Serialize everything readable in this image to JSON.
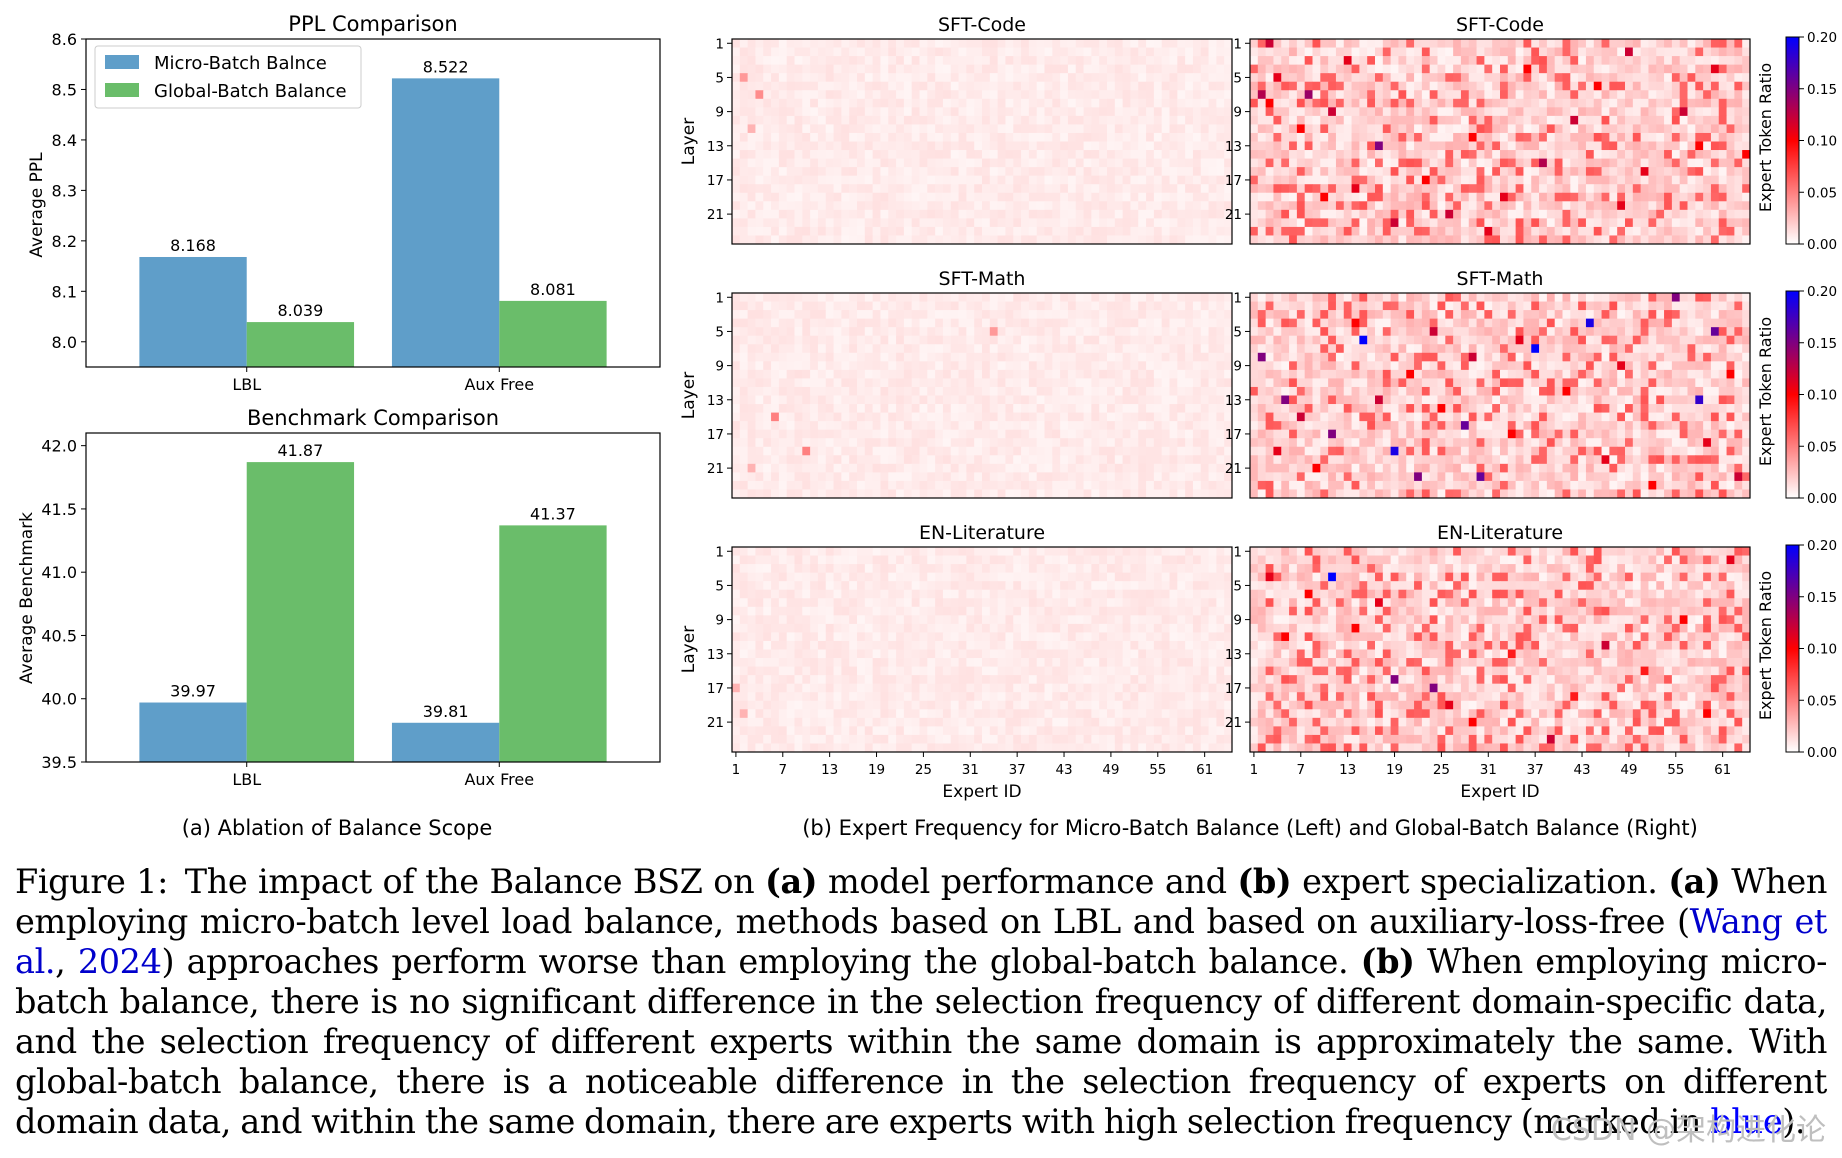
{
  "chart_data": [
    {
      "panel": "a-top",
      "type": "bar",
      "title": "PPL Comparison",
      "ylabel": "Average PPL",
      "xlabel": "",
      "categories": [
        "LBL",
        "Aux Free"
      ],
      "series": [
        {
          "name": "Micro-Batch Balnce",
          "values": [
            8.168,
            8.522
          ],
          "color": "#5f9ec9"
        },
        {
          "name": "Global-Batch Balance",
          "values": [
            8.039,
            8.081
          ],
          "color": "#6abd6a"
        }
      ],
      "value_labels": [
        [
          "8.168",
          "8.522"
        ],
        [
          "8.039",
          "8.081"
        ]
      ],
      "ylim": [
        7.95,
        8.6
      ],
      "yticks": [
        "8.0",
        "8.1",
        "8.2",
        "8.3",
        "8.4",
        "8.5",
        "8.6"
      ],
      "legend": "top-left",
      "grid": false
    },
    {
      "panel": "a-bottom",
      "type": "bar",
      "title": "Benchmark Comparison",
      "ylabel": "Average Benchmark",
      "xlabel": "",
      "categories": [
        "LBL",
        "Aux Free"
      ],
      "series": [
        {
          "values": [
            39.97,
            39.81
          ],
          "color": "#5f9ec9"
        },
        {
          "values": [
            41.87,
            41.37
          ],
          "color": "#6abd6a"
        }
      ],
      "value_labels": [
        [
          "39.97",
          "39.81"
        ],
        [
          "41.87",
          "41.37"
        ]
      ],
      "ylim": [
        39.5,
        42.1
      ],
      "yticks": [
        "39.5",
        "40.0",
        "40.5",
        "41.0",
        "41.5",
        "42.0"
      ],
      "grid": false
    },
    {
      "panel": "b",
      "type": "heatmap",
      "titles": [
        "SFT-Code",
        "SFT-Code",
        "SFT-Math",
        "SFT-Math",
        "EN-Literature",
        "EN-Literature"
      ],
      "ylabel": "Layer",
      "xlabel": "Expert ID",
      "xticks": [
        "1",
        "7",
        "13",
        "19",
        "25",
        "31",
        "37",
        "43",
        "49",
        "55",
        "61"
      ],
      "yticks": [
        "1",
        "5",
        "9",
        "13",
        "17",
        "21"
      ],
      "n_experts": 64,
      "n_layers": 24,
      "colorbar": {
        "label": "Expert Token Ratio",
        "ticks": [
          "0.00",
          "0.05",
          "0.10",
          "0.15",
          "0.20"
        ],
        "range": [
          0,
          0.2
        ]
      },
      "micro_batch_base": 0.008,
      "global_batch_base": 0.02,
      "hot_cells": {
        "code_left": [
          [
            1,
            4,
            0.04
          ],
          [
            3,
            6,
            0.045
          ],
          [
            2,
            10,
            0.03
          ]
        ],
        "code_right": [
          [
            2,
            0,
            0.12
          ],
          [
            7,
            6,
            0.14
          ],
          [
            1,
            6,
            0.13
          ],
          [
            3,
            4,
            0.11
          ],
          [
            2,
            7,
            0.1
          ],
          [
            6,
            10,
            0.1
          ],
          [
            10,
            8,
            0.12
          ],
          [
            13,
            17,
            0.11
          ],
          [
            16,
            12,
            0.15
          ],
          [
            22,
            16,
            0.1
          ],
          [
            25,
            20,
            0.12
          ],
          [
            28,
            11,
            0.1
          ],
          [
            32,
            18,
            0.11
          ],
          [
            37,
            14,
            0.13
          ],
          [
            44,
            5,
            0.1
          ],
          [
            47,
            19,
            0.11
          ],
          [
            55,
            8,
            0.12
          ],
          [
            59,
            3,
            0.11
          ],
          [
            63,
            13,
            0.1
          ],
          [
            30,
            22,
            0.11
          ],
          [
            18,
            21,
            0.12
          ],
          [
            9,
            18,
            0.1
          ],
          [
            41,
            9,
            0.12
          ],
          [
            50,
            15,
            0.11
          ],
          [
            57,
            12,
            0.1
          ],
          [
            12,
            2,
            0.11
          ],
          [
            48,
            1,
            0.12
          ],
          [
            35,
            3,
            0.1
          ]
        ],
        "math_left": [
          [
            5,
            14,
            0.05
          ],
          [
            9,
            18,
            0.05
          ],
          [
            33,
            4,
            0.04
          ],
          [
            2,
            20,
            0.03
          ]
        ],
        "math_right": [
          [
            14,
            5,
            0.2
          ],
          [
            18,
            18,
            0.19
          ],
          [
            43,
            3,
            0.19
          ],
          [
            36,
            6,
            0.2
          ],
          [
            57,
            12,
            0.18
          ],
          [
            27,
            15,
            0.16
          ],
          [
            21,
            21,
            0.15
          ],
          [
            4,
            12,
            0.15
          ],
          [
            1,
            7,
            0.15
          ],
          [
            10,
            16,
            0.15
          ],
          [
            29,
            21,
            0.16
          ],
          [
            54,
            0,
            0.15
          ],
          [
            59,
            4,
            0.16
          ],
          [
            28,
            7,
            0.12
          ],
          [
            47,
            8,
            0.11
          ],
          [
            20,
            9,
            0.1
          ],
          [
            6,
            14,
            0.12
          ],
          [
            33,
            16,
            0.1
          ],
          [
            58,
            17,
            0.11
          ],
          [
            40,
            11,
            0.1
          ],
          [
            13,
            3,
            0.1
          ],
          [
            3,
            18,
            0.11
          ],
          [
            62,
            21,
            0.12
          ],
          [
            8,
            20,
            0.1
          ],
          [
            24,
            13,
            0.1
          ],
          [
            45,
            19,
            0.11
          ],
          [
            51,
            22,
            0.1
          ],
          [
            16,
            12,
            0.12
          ],
          [
            34,
            5,
            0.11
          ],
          [
            61,
            9,
            0.1
          ],
          [
            23,
            4,
            0.12
          ]
        ],
        "lit_left": [
          [
            0,
            16,
            0.03
          ],
          [
            1,
            19,
            0.03
          ]
        ],
        "lit_right": [
          [
            10,
            3,
            0.2
          ],
          [
            18,
            15,
            0.15
          ],
          [
            23,
            16,
            0.15
          ],
          [
            2,
            3,
            0.11
          ],
          [
            7,
            5,
            0.1
          ],
          [
            16,
            6,
            0.11
          ],
          [
            45,
            11,
            0.12
          ],
          [
            25,
            18,
            0.11
          ],
          [
            38,
            22,
            0.12
          ],
          [
            61,
            1,
            0.11
          ],
          [
            55,
            8,
            0.1
          ],
          [
            4,
            10,
            0.1
          ],
          [
            33,
            12,
            0.09
          ],
          [
            28,
            20,
            0.1
          ],
          [
            50,
            14,
            0.09
          ],
          [
            13,
            9,
            0.1
          ],
          [
            41,
            17,
            0.09
          ],
          [
            58,
            19,
            0.1
          ]
        ]
      }
    }
  ],
  "subcaptions": {
    "a": "(a) Ablation of Balance Scope",
    "b": "(b) Expert Frequency for Micro-Batch Balance (Left) and Global-Batch Balance (Right)"
  },
  "caption": {
    "label": "Figure 1:",
    "s1": "The impact of the Balance BSZ on",
    "b1": "(a)",
    "s2": "model performance and",
    "b2": "(b)",
    "s3": "expert specialization.",
    "b3": "(a)",
    "s4": "When employing micro-batch level load balance, methods based on LBL and based on auxiliary-loss-free (",
    "cite_name": "Wang et al.",
    "cite_sep": ", ",
    "cite_year": "2024",
    "s5": ") approaches perform worse than employing the global-batch balance.",
    "b4": "(b)",
    "s6": "When employing micro-batch balance, there is no significant difference in the selection frequency of different domain-specific data, and the selection frequency of different experts within the same domain is approximately the same. With global-batch balance, there is a noticeable difference in the selection frequency of experts on different domain data, and within the same domain, there are experts with high selection frequency (marked in",
    "blue_word": "blue",
    "s7": ")."
  },
  "watermark": "CSDN @架构进化论"
}
